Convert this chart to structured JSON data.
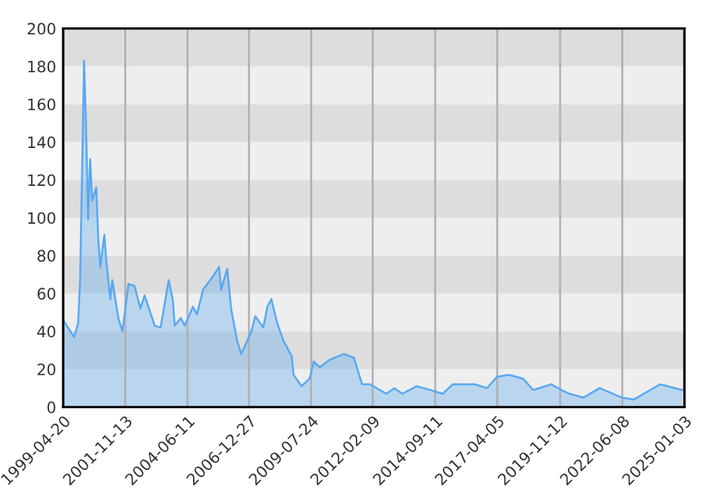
{
  "chart_data": {
    "type": "area",
    "x": [
      "1999-04-20",
      "1999-10",
      "1999-12",
      "2000-01",
      "2000-02",
      "2000-03",
      "2000-04",
      "2000-05",
      "2000-06",
      "2000-07",
      "2000-09",
      "2000-10",
      "2000-11",
      "2001-01",
      "2001-02",
      "2001-04",
      "2001-05",
      "2001-08",
      "2001-10",
      "2002-01",
      "2002-04",
      "2002-07",
      "2002-09",
      "2003-02",
      "2003-05",
      "2003-09",
      "2003-11",
      "2003-12",
      "2004-03",
      "2004-05",
      "2004-09",
      "2004-11",
      "2005-02",
      "2005-07",
      "2005-10",
      "2005-11",
      "2006-02",
      "2006-04",
      "2006-07",
      "2006-09",
      "2006-12",
      "2007-02",
      "2007-04",
      "2007-08",
      "2007-10",
      "2007-12",
      "2008-03",
      "2008-06",
      "2008-10",
      "2008-11",
      "2009-03",
      "2009-07",
      "2009-09",
      "2009-12",
      "2010-05",
      "2010-12",
      "2011-05",
      "2011-09",
      "2012-01",
      "2012-09",
      "2013-01",
      "2013-05",
      "2013-12",
      "2014-07",
      "2015-01",
      "2015-06",
      "2016-05",
      "2016-11",
      "2017-04",
      "2017-10",
      "2018-05",
      "2018-10",
      "2019-07",
      "2019-12",
      "2020-04",
      "2020-11",
      "2021-07",
      "2022-06",
      "2022-12",
      "2024-01",
      "2024-12"
    ],
    "series": [
      {
        "color": "#5aa9f0",
        "values": [
          46,
          37,
          44,
          67,
          126,
          183,
          146,
          99,
          131,
          109,
          116,
          89,
          74,
          91,
          77,
          57,
          67,
          47,
          40,
          65,
          64,
          52,
          59,
          43,
          42,
          67,
          57,
          43,
          47,
          43,
          53,
          49,
          62,
          69,
          74,
          62,
          73,
          52,
          35,
          28,
          35,
          40,
          48,
          42,
          53,
          57,
          44,
          35,
          27,
          17,
          11,
          15,
          24,
          21,
          25,
          28,
          26,
          12,
          12,
          7,
          10,
          7,
          11,
          9,
          7,
          12,
          12,
          10,
          16,
          17,
          15,
          9,
          12,
          9,
          7,
          5,
          10,
          5,
          4,
          12,
          9
        ]
      }
    ],
    "xlim": [
      "1999-04-20",
      "2025-01-03"
    ],
    "xticks": [
      "1999-04-20",
      "2001-11-13",
      "2004-06-11",
      "2006-12-27",
      "2009-07-24",
      "2012-02-09",
      "2014-09-11",
      "2017-04-05",
      "2019-11-12",
      "2022-06-08",
      "2025-01-03"
    ],
    "ylim": [
      0,
      200
    ],
    "yticks": [
      0,
      20,
      40,
      60,
      80,
      100,
      120,
      140,
      160,
      180,
      200
    ],
    "grid": "x",
    "bands": [
      {
        "axis": "y",
        "from": 0,
        "to": 20,
        "color": "#eeeeee"
      },
      {
        "axis": "y",
        "from": 20,
        "to": 40,
        "color": "#dddddd"
      },
      {
        "axis": "y",
        "from": 40,
        "to": 60,
        "color": "#eeeeee"
      },
      {
        "axis": "y",
        "from": 60,
        "to": 80,
        "color": "#dddddd"
      },
      {
        "axis": "y",
        "from": 80,
        "to": 100,
        "color": "#eeeeee"
      },
      {
        "axis": "y",
        "from": 100,
        "to": 120,
        "color": "#dddddd"
      },
      {
        "axis": "y",
        "from": 120,
        "to": 140,
        "color": "#eeeeee"
      },
      {
        "axis": "y",
        "from": 140,
        "to": 160,
        "color": "#dddddd"
      },
      {
        "axis": "y",
        "from": 160,
        "to": 180,
        "color": "#eeeeee"
      },
      {
        "axis": "y",
        "from": 180,
        "to": 200,
        "color": "#dddddd"
      }
    ]
  }
}
